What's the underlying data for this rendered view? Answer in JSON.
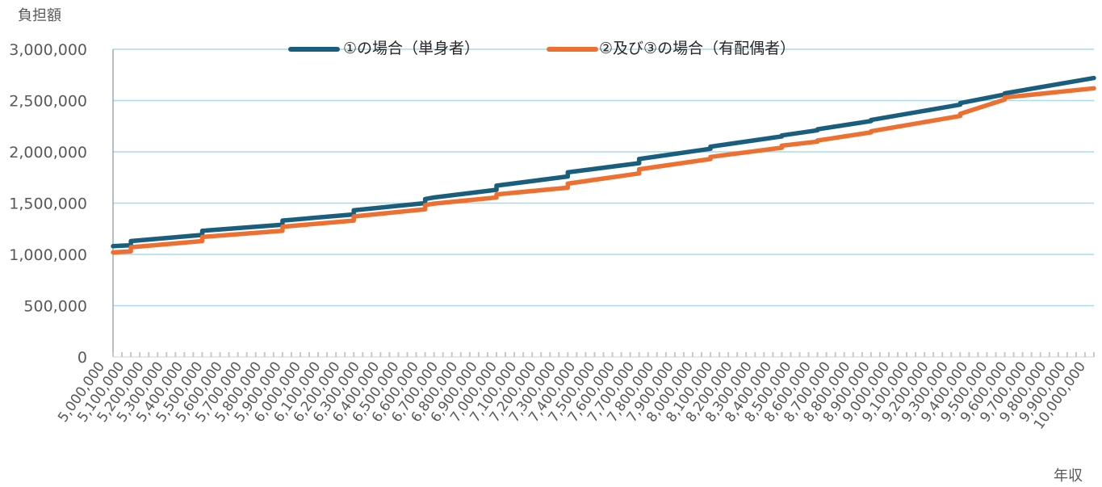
{
  "chart_data": {
    "type": "line",
    "ylabel": "負担額",
    "xlabel": "年収",
    "ylim": [
      0,
      3000000
    ],
    "y_ticks": [
      "3,000,000",
      "2,500,000",
      "2,000,000",
      "1,500,000",
      "1,000,000",
      "500,000",
      "0"
    ],
    "y_tick_values": [
      3000000,
      2500000,
      2000000,
      1500000,
      1000000,
      500000,
      0
    ],
    "x_categories": [
      "5,000,000",
      "5,100,000",
      "5,200,000",
      "5,300,000",
      "5,400,000",
      "5,500,000",
      "5,600,000",
      "5,700,000",
      "5,800,000",
      "5,900,000",
      "6,000,000",
      "6,100,000",
      "6,200,000",
      "6,300,000",
      "6,400,000",
      "6,500,000",
      "6,600,000",
      "6,700,000",
      "6,800,000",
      "6,900,000",
      "7,000,000",
      "7,100,000",
      "7,200,000",
      "7,300,000",
      "7,400,000",
      "7,500,000",
      "7,600,000",
      "7,700,000",
      "7,800,000",
      "7,900,000",
      "8,000,000",
      "8,100,000",
      "8,200,000",
      "8,300,000",
      "8,400,000",
      "8,500,000",
      "8,600,000",
      "8,700,000",
      "8,800,000",
      "8,900,000",
      "9,000,000",
      "9,100,000",
      "9,200,000",
      "9,300,000",
      "9,400,000",
      "9,500,000",
      "9,600,000",
      "9,700,000",
      "9,800,000",
      "9,900,000",
      "10,000,000"
    ],
    "grid": true,
    "legend_position": "top",
    "series": [
      {
        "name": "①の場合（単身者）",
        "color": "#1a5e7e",
        "points": [
          [
            5000000,
            1080000
          ],
          [
            5100000,
            1090000
          ],
          [
            5100000,
            1130000
          ],
          [
            5500000,
            1190000
          ],
          [
            5500000,
            1230000
          ],
          [
            5950000,
            1290000
          ],
          [
            5950000,
            1330000
          ],
          [
            6350000,
            1390000
          ],
          [
            6350000,
            1430000
          ],
          [
            6750000,
            1500000
          ],
          [
            6750000,
            1540000
          ],
          [
            6800000,
            1555000
          ],
          [
            7150000,
            1630000
          ],
          [
            7150000,
            1670000
          ],
          [
            7550000,
            1760000
          ],
          [
            7550000,
            1800000
          ],
          [
            7950000,
            1890000
          ],
          [
            7950000,
            1930000
          ],
          [
            8350000,
            2030000
          ],
          [
            8350000,
            2050000
          ],
          [
            8750000,
            2150000
          ],
          [
            8750000,
            2160000
          ],
          [
            8950000,
            2210000
          ],
          [
            8950000,
            2220000
          ],
          [
            9250000,
            2300000
          ],
          [
            9250000,
            2310000
          ],
          [
            9750000,
            2460000
          ],
          [
            9750000,
            2475000
          ],
          [
            10000000,
            2560000
          ],
          [
            10000000,
            2570000
          ],
          [
            10500000,
            2720000
          ]
        ]
      },
      {
        "name": "②及び③の場合（有配偶者）",
        "color": "#ed7031",
        "points": [
          [
            5000000,
            1020000
          ],
          [
            5100000,
            1030000
          ],
          [
            5100000,
            1070000
          ],
          [
            5500000,
            1130000
          ],
          [
            5500000,
            1170000
          ],
          [
            5950000,
            1230000
          ],
          [
            5950000,
            1270000
          ],
          [
            6350000,
            1330000
          ],
          [
            6350000,
            1370000
          ],
          [
            6750000,
            1440000
          ],
          [
            6750000,
            1480000
          ],
          [
            6800000,
            1495000
          ],
          [
            7150000,
            1555000
          ],
          [
            7150000,
            1585000
          ],
          [
            7550000,
            1650000
          ],
          [
            7550000,
            1690000
          ],
          [
            7950000,
            1790000
          ],
          [
            7950000,
            1830000
          ],
          [
            8350000,
            1930000
          ],
          [
            8350000,
            1950000
          ],
          [
            8750000,
            2040000
          ],
          [
            8750000,
            2060000
          ],
          [
            8950000,
            2100000
          ],
          [
            8950000,
            2110000
          ],
          [
            9250000,
            2190000
          ],
          [
            9250000,
            2200000
          ],
          [
            9750000,
            2350000
          ],
          [
            9750000,
            2370000
          ],
          [
            10000000,
            2510000
          ],
          [
            10000000,
            2530000
          ],
          [
            10500000,
            2620000
          ]
        ]
      }
    ]
  }
}
